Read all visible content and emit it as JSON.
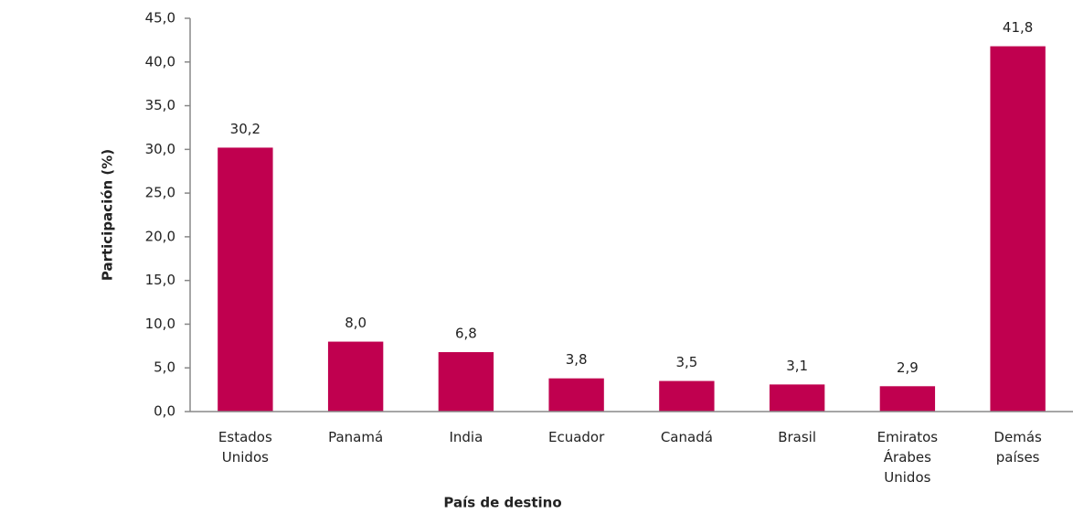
{
  "chart_data": {
    "type": "bar",
    "x_label": "País de destino",
    "y_label": "Participación (%)",
    "categories": [
      "Estados Unidos",
      "Panamá",
      "India",
      "Ecuador",
      "Canadá",
      "Brasil",
      "Emiratos Árabes Unidos",
      "Demás países"
    ],
    "values": [
      30.2,
      8.0,
      6.8,
      3.8,
      3.5,
      3.1,
      2.9,
      41.8
    ],
    "value_labels": [
      "30,2",
      "8,0",
      "6,8",
      "3,8",
      "3,5",
      "3,1",
      "2,9",
      "41,8"
    ],
    "color": "#c0004f",
    "ylim": [
      0,
      45
    ],
    "yticks": [
      {
        "value": 0,
        "label": "0,0"
      },
      {
        "value": 5,
        "label": "5,0"
      },
      {
        "value": 10,
        "label": "10,0"
      },
      {
        "value": 15,
        "label": "15,0"
      },
      {
        "value": 20,
        "label": "20,0"
      },
      {
        "value": 25,
        "label": "25,0"
      },
      {
        "value": 30,
        "label": "30,0"
      },
      {
        "value": 35,
        "label": "35,0"
      },
      {
        "value": 40,
        "label": "40,0"
      },
      {
        "value": 45,
        "label": "45,0"
      }
    ],
    "grid": false
  }
}
